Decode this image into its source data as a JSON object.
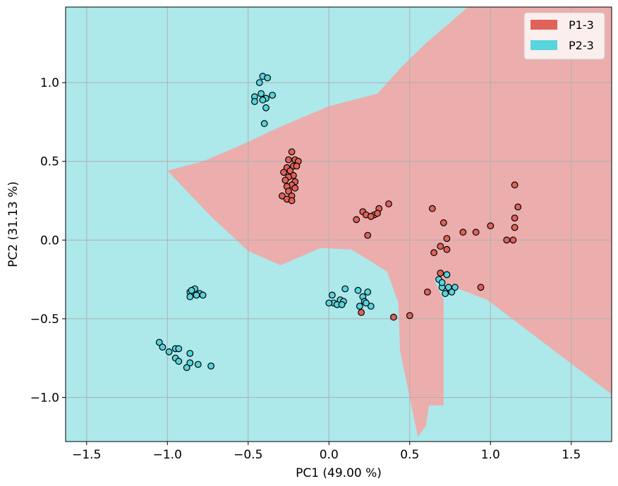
{
  "chart_data": {
    "type": "scatter",
    "title": "",
    "xlabel": "PC1 (49.00 %)",
    "ylabel": "PC2 (31.13 %)",
    "xlim": [
      -1.63,
      1.75
    ],
    "ylim": [
      -1.28,
      1.48
    ],
    "xticks": [
      -1.5,
      -1.0,
      -0.5,
      0.0,
      0.5,
      1.0,
      1.5
    ],
    "xtick_labels": [
      "−1.5",
      "−1.0",
      "−0.5",
      "0.0",
      "0.5",
      "1.0",
      "1.5"
    ],
    "yticks": [
      -1.0,
      -0.5,
      0.0,
      0.5,
      1.0
    ],
    "ytick_labels": [
      "−1.0",
      "−0.5",
      "0.0",
      "0.5",
      "1.0"
    ],
    "grid": true,
    "legend_position": "top-right",
    "colors": {
      "background_region": "#ade8eb",
      "decision_region": "#ebaeac",
      "P1-3": "#e06258",
      "P2-3": "#57d4dc",
      "grid": "#b0b0b0"
    },
    "decision_region_outline": [
      [
        0.86,
        1.48
      ],
      [
        1.75,
        1.48
      ],
      [
        1.75,
        -0.98
      ],
      [
        0.98,
        -0.38
      ],
      [
        0.65,
        -0.25
      ],
      [
        0.71,
        -0.38
      ],
      [
        0.71,
        -1.05
      ],
      [
        0.62,
        -1.05
      ],
      [
        0.6,
        -1.18
      ],
      [
        0.55,
        -1.25
      ],
      [
        0.48,
        -0.9
      ],
      [
        0.44,
        -0.7
      ],
      [
        0.43,
        -0.4
      ],
      [
        0.36,
        -0.2
      ],
      [
        0.14,
        -0.06
      ],
      [
        -0.05,
        -0.05
      ],
      [
        -0.3,
        -0.16
      ],
      [
        -0.5,
        -0.07
      ],
      [
        -0.73,
        0.15
      ],
      [
        -1.0,
        0.44
      ],
      [
        -0.78,
        0.5
      ],
      [
        -0.55,
        0.6
      ],
      [
        -0.3,
        0.72
      ],
      [
        0.0,
        0.85
      ],
      [
        0.3,
        0.93
      ],
      [
        0.45,
        1.1
      ],
      [
        0.6,
        1.25
      ]
    ],
    "series": [
      {
        "name": "P1-3",
        "points": [
          [
            -0.23,
            0.56
          ],
          [
            -0.21,
            0.51
          ],
          [
            -0.25,
            0.51
          ],
          [
            -0.19,
            0.5
          ],
          [
            -0.22,
            0.47
          ],
          [
            -0.26,
            0.46
          ],
          [
            -0.2,
            0.47
          ],
          [
            -0.28,
            0.43
          ],
          [
            -0.24,
            0.44
          ],
          [
            -0.22,
            0.41
          ],
          [
            -0.25,
            0.4
          ],
          [
            -0.27,
            0.38
          ],
          [
            -0.21,
            0.37
          ],
          [
            -0.23,
            0.35
          ],
          [
            -0.26,
            0.34
          ],
          [
            -0.21,
            0.33
          ],
          [
            -0.25,
            0.31
          ],
          [
            -0.29,
            0.28
          ],
          [
            -0.23,
            0.28
          ],
          [
            -0.26,
            0.26
          ],
          [
            -0.23,
            0.25
          ],
          [
            0.37,
            0.23
          ],
          [
            0.31,
            0.2
          ],
          [
            0.21,
            0.18
          ],
          [
            0.23,
            0.16
          ],
          [
            0.28,
            0.16
          ],
          [
            0.3,
            0.17
          ],
          [
            0.26,
            0.15
          ],
          [
            0.17,
            0.13
          ],
          [
            0.24,
            0.03
          ],
          [
            0.64,
            0.2
          ],
          [
            0.71,
            0.11
          ],
          [
            0.83,
            0.05
          ],
          [
            0.91,
            0.05
          ],
          [
            1.0,
            0.09
          ],
          [
            1.15,
            0.35
          ],
          [
            1.17,
            0.21
          ],
          [
            1.15,
            0.14
          ],
          [
            1.15,
            0.08
          ],
          [
            1.1,
            0.0
          ],
          [
            1.14,
            0.0
          ],
          [
            0.73,
            0.01
          ],
          [
            0.69,
            -0.04
          ],
          [
            0.73,
            -0.06
          ],
          [
            0.65,
            -0.08
          ],
          [
            0.69,
            -0.21
          ],
          [
            0.75,
            -0.31
          ],
          [
            0.61,
            -0.33
          ],
          [
            0.94,
            -0.3
          ],
          [
            0.2,
            -0.46
          ],
          [
            0.4,
            -0.49
          ],
          [
            0.5,
            -0.48
          ]
        ]
      },
      {
        "name": "P2-3",
        "points": [
          [
            -0.41,
            1.04
          ],
          [
            -0.38,
            1.03
          ],
          [
            -0.43,
            1.0
          ],
          [
            -0.46,
            0.91
          ],
          [
            -0.42,
            0.93
          ],
          [
            -0.35,
            0.92
          ],
          [
            -0.39,
            0.9
          ],
          [
            -0.46,
            0.88
          ],
          [
            -0.41,
            0.89
          ],
          [
            -0.39,
            0.84
          ],
          [
            -0.4,
            0.74
          ],
          [
            -0.86,
            -0.33
          ],
          [
            -0.83,
            -0.31
          ],
          [
            -0.8,
            -0.34
          ],
          [
            -0.86,
            -0.36
          ],
          [
            -0.82,
            -0.35
          ],
          [
            -0.78,
            -0.35
          ],
          [
            -0.85,
            -0.32
          ],
          [
            0.02,
            -0.35
          ],
          [
            0.07,
            -0.38
          ],
          [
            0.03,
            -0.4
          ],
          [
            0.05,
            -0.41
          ],
          [
            0.09,
            -0.39
          ],
          [
            0.0,
            -0.4
          ],
          [
            0.1,
            -0.31
          ],
          [
            0.08,
            -0.41
          ],
          [
            0.18,
            -0.32
          ],
          [
            0.21,
            -0.36
          ],
          [
            0.24,
            -0.33
          ],
          [
            0.22,
            -0.39
          ],
          [
            0.19,
            -0.42
          ],
          [
            0.26,
            -0.42
          ],
          [
            0.23,
            -0.4
          ],
          [
            0.68,
            -0.25
          ],
          [
            0.73,
            -0.22
          ],
          [
            0.7,
            -0.3
          ],
          [
            0.74,
            -0.3
          ],
          [
            0.78,
            -0.3
          ],
          [
            0.72,
            -0.34
          ],
          [
            0.7,
            -0.27
          ],
          [
            0.76,
            -0.33
          ],
          [
            -1.05,
            -0.65
          ],
          [
            -1.03,
            -0.68
          ],
          [
            -0.95,
            -0.69
          ],
          [
            -0.99,
            -0.71
          ],
          [
            -0.93,
            -0.69
          ],
          [
            -0.95,
            -0.75
          ],
          [
            -0.93,
            -0.77
          ],
          [
            -0.86,
            -0.72
          ],
          [
            -0.86,
            -0.78
          ],
          [
            -0.88,
            -0.81
          ],
          [
            -0.81,
            -0.79
          ],
          [
            -0.73,
            -0.8
          ]
        ]
      }
    ]
  }
}
